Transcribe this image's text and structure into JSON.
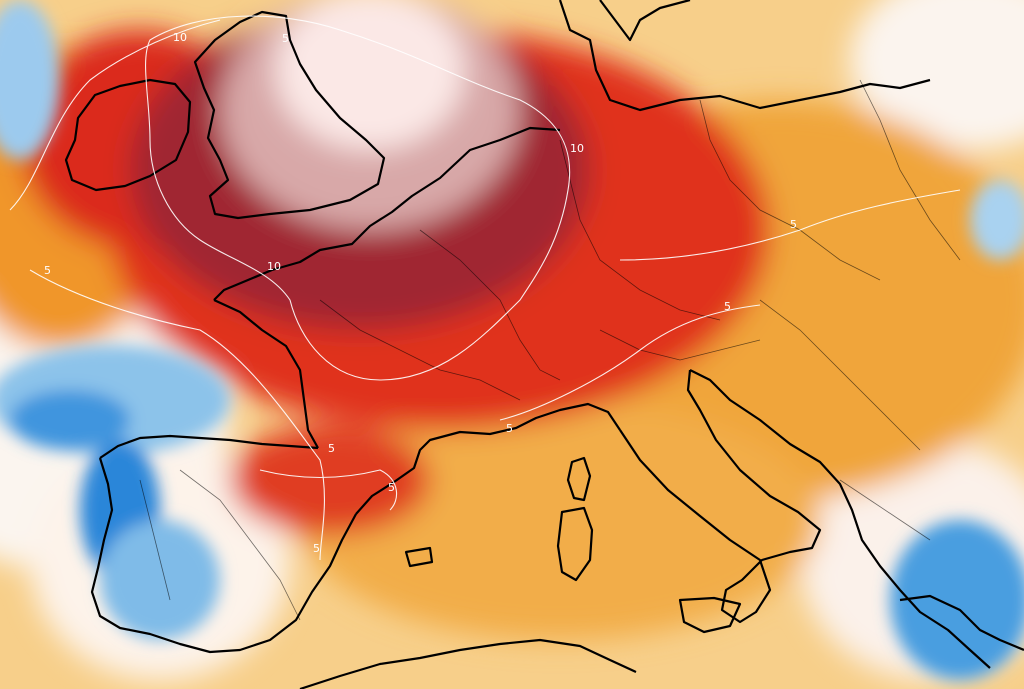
{
  "map": {
    "type": "temperature-anomaly-map",
    "region": "Europe",
    "colors": {
      "anomaly_extreme": "#f7e4e4",
      "anomaly_very_high": "#a3222c",
      "anomaly_high": "#e02a1b",
      "anomaly_warm": "#f0a42a",
      "anomaly_mild": "#f7d08e",
      "neutral": "#ffffff",
      "cool": "#6ab2e6",
      "cold": "#1e7fd6",
      "coastline": "#000000",
      "contour": "#ffffff"
    },
    "contour_labels": [
      "10",
      "10",
      "10",
      "5",
      "5",
      "5",
      "5",
      "5",
      "5",
      "5",
      "5"
    ]
  }
}
